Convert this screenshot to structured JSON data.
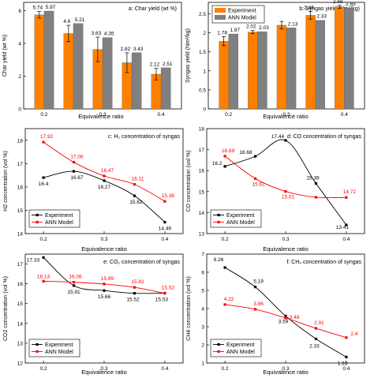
{
  "colors": {
    "experiment_bar": "#ff8000",
    "ann_bar": "#808080",
    "experiment_line": "#000000",
    "ann_line": "#ff0000"
  },
  "chart_data": [
    {
      "type": "bar",
      "title": "a: Char yield (wt %)",
      "xlabel": "Equivalence ratio",
      "ylabel": "Char yield (wt %)",
      "categories": [
        "0.2",
        "0.25",
        "0.3",
        "0.35",
        "0.4"
      ],
      "x_tick_labels": [
        "0.2",
        "",
        "0.3",
        "",
        "0.4"
      ],
      "ylim": [
        0,
        6.5
      ],
      "yticks": [
        0,
        2,
        4,
        6
      ],
      "series": [
        {
          "name": "Experiment",
          "values": [
            5.74,
            4.6,
            3.63,
            2.82,
            2.12
          ],
          "errors": [
            0.2,
            0.5,
            0.75,
            0.6,
            0.35
          ]
        },
        {
          "name": "ANN Model",
          "values": [
            5.97,
            5.21,
            4.35,
            3.43,
            2.51
          ]
        }
      ],
      "data_labels": [
        [
          "5.74",
          "4.6",
          "3.63",
          "2.82",
          "2.12"
        ],
        [
          "5.97",
          "5.21",
          "4.35",
          "3.43",
          "2.51"
        ]
      ],
      "legend": "none"
    },
    {
      "type": "bar",
      "title": "b: Syngas yield (Nm³/kg)",
      "xlabel": "Equivalence ratio",
      "ylabel": "Syngas yield (Nm³/kg)",
      "categories": [
        "0.2",
        "0.25",
        "0.3",
        "0.35",
        "0.4"
      ],
      "x_tick_labels": [
        "0.2",
        "",
        "0.3",
        "",
        "0.4"
      ],
      "ylim": [
        0,
        2.8
      ],
      "yticks": [
        0,
        0.5,
        1,
        1.5,
        2,
        2.5
      ],
      "series": [
        {
          "name": "Experiment",
          "values": [
            1.78,
            2.02,
            2.2,
            2.46,
            2.68
          ],
          "errors": [
            0.12,
            0.04,
            0.1,
            0.1,
            0.04
          ]
        },
        {
          "name": "ANN Model",
          "values": [
            1.97,
            2.03,
            2.13,
            2.33,
            2.65
          ]
        }
      ],
      "data_labels": [
        [
          "1.78",
          "2.02",
          "",
          "2.46",
          "2.68"
        ],
        [
          "1.97",
          "2.03",
          "2.13",
          "2.33",
          "2.65"
        ]
      ],
      "legend": "top-left"
    },
    {
      "type": "line",
      "title": "c: H₂ concentration of syngas",
      "xlabel": "Equivalence ratio",
      "ylabel": "H2 concentration (vol %)",
      "xlim": [
        0.17,
        0.43
      ],
      "xticks": [
        0.2,
        0.3,
        0.4
      ],
      "ylim": [
        14,
        18.5
      ],
      "yticks": [
        14,
        15,
        16,
        17,
        18
      ],
      "series": [
        {
          "name": "Experiment",
          "x": [
            0.2,
            0.25,
            0.3,
            0.35,
            0.4
          ],
          "values": [
            16.4,
            16.67,
            16.27,
            15.62,
            14.49
          ]
        },
        {
          "name": "ANN Model",
          "x": [
            0.2,
            0.25,
            0.3,
            0.35,
            0.4
          ],
          "values": [
            17.92,
            17.06,
            16.47,
            16.11,
            15.38
          ]
        }
      ],
      "data_labels": [
        [
          "16.4",
          "16.67",
          "16.27",
          "15.62",
          "14.49"
        ],
        [
          "17.92",
          "17.06",
          "16.47",
          "16.11",
          "15.38"
        ]
      ],
      "legend": "bottom-left"
    },
    {
      "type": "line",
      "title": "d: CO concentration of syngas",
      "xlabel": "Equivalence ratio",
      "ylabel": "CO concentration (vol %)",
      "xlim": [
        0.17,
        0.43
      ],
      "xticks": [
        0.2,
        0.3,
        0.4
      ],
      "ylim": [
        13,
        18
      ],
      "yticks": [
        13,
        14,
        15,
        16,
        17,
        18
      ],
      "series": [
        {
          "name": "Experiment",
          "x": [
            0.2,
            0.25,
            0.3,
            0.35,
            0.4
          ],
          "values": [
            16.2,
            16.68,
            17.44,
            15.39,
            13.41
          ]
        },
        {
          "name": "ANN Model",
          "x": [
            0.2,
            0.25,
            0.3,
            0.35,
            0.4
          ],
          "values": [
            16.69,
            15.62,
            15.01,
            14.73,
            14.72
          ]
        }
      ],
      "data_labels": [
        [
          "16.2",
          "16.68",
          "17.44",
          "15.39",
          "13.41"
        ],
        [
          "16.69",
          "15.62",
          "15.01",
          "",
          "14.72"
        ]
      ],
      "legend": "bottom-left"
    },
    {
      "type": "line",
      "title": "e: CO₂ concentration of syngas",
      "xlabel": "Equivalence ratio",
      "ylabel": "CO2 concentration (vol %)",
      "xlim": [
        0.17,
        0.43
      ],
      "xticks": [
        0.2,
        0.3,
        0.4
      ],
      "ylim": [
        12,
        17.5
      ],
      "yticks": [
        12,
        13,
        14,
        15,
        16,
        17
      ],
      "series": [
        {
          "name": "Experiment",
          "x": [
            0.2,
            0.25,
            0.3,
            0.35,
            0.4
          ],
          "values": [
            17.33,
            15.91,
            15.66,
            15.52,
            15.53
          ]
        },
        {
          "name": "ANN Model",
          "x": [
            0.2,
            0.25,
            0.3,
            0.35,
            0.4
          ],
          "values": [
            16.13,
            16.08,
            15.99,
            15.82,
            15.52
          ]
        }
      ],
      "data_labels": [
        [
          "17.33",
          "15.91",
          "15.66",
          "15.52",
          "15.53"
        ],
        [
          "16.13",
          "16.08",
          "15.99",
          "15.82",
          "15.52"
        ]
      ],
      "legend": "bottom-left"
    },
    {
      "type": "line",
      "title": "f: CH₄ concentration of syngas",
      "xlabel": "Equivalence ratio",
      "ylabel": "CH4 concentration (vol %)",
      "xlim": [
        0.17,
        0.43
      ],
      "xticks": [
        0.2,
        0.3,
        0.4
      ],
      "ylim": [
        1,
        7
      ],
      "yticks": [
        1,
        2,
        3,
        4,
        5,
        6,
        7
      ],
      "series": [
        {
          "name": "Experiment",
          "x": [
            0.2,
            0.25,
            0.3,
            0.35,
            0.4
          ],
          "values": [
            6.26,
            5.19,
            3.59,
            2.33,
            1.33
          ]
        },
        {
          "name": "ANN Model",
          "x": [
            0.2,
            0.25,
            0.3,
            0.35,
            0.4
          ],
          "values": [
            4.22,
            3.96,
            3.48,
            2.91,
            2.4
          ]
        }
      ],
      "data_labels": [
        [
          "6.26",
          "5.19",
          "3.59",
          "2.33",
          "1.33"
        ],
        [
          "4.22",
          "3.96",
          "3.48",
          "2.91",
          "2.4"
        ]
      ],
      "legend": "bottom-left"
    }
  ]
}
